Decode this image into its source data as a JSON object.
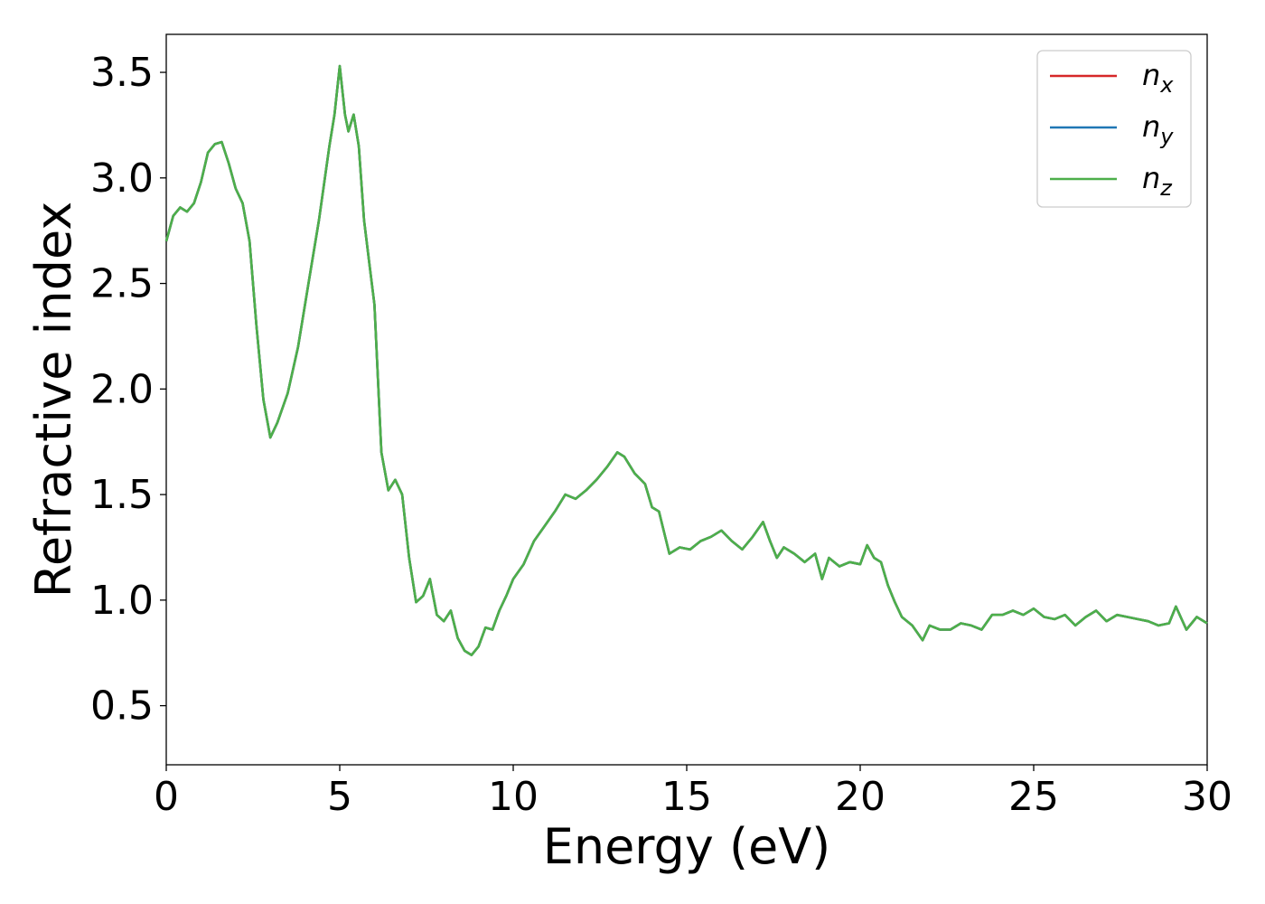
{
  "chart_data": {
    "type": "line",
    "xlabel": "Energy (eV)",
    "ylabel": "Refractive index",
    "xlim": [
      0,
      30
    ],
    "ylim": [
      0.22,
      3.68
    ],
    "xticks": [
      0,
      5,
      10,
      15,
      20,
      25,
      30
    ],
    "xtick_labels": [
      "0",
      "5",
      "10",
      "15",
      "20",
      "25",
      "30"
    ],
    "yticks": [
      0.5,
      1.0,
      1.5,
      2.0,
      2.5,
      3.0,
      3.5
    ],
    "ytick_labels": [
      "0.5",
      "1.0",
      "1.5",
      "2.0",
      "2.5",
      "3.0",
      "3.5"
    ],
    "grid": false,
    "legend_position": "top-right",
    "series": [
      {
        "name": "n",
        "subscript": "x",
        "color": "#d62728"
      },
      {
        "name": "n",
        "subscript": "y",
        "color": "#1f77b4"
      },
      {
        "name": "n",
        "subscript": "z",
        "color": "#4daf4a"
      }
    ],
    "shared_values": {
      "x": [
        0,
        0.2,
        0.4,
        0.6,
        0.8,
        1.0,
        1.2,
        1.4,
        1.6,
        1.8,
        2.0,
        2.2,
        2.4,
        2.6,
        2.8,
        3.0,
        3.2,
        3.5,
        3.8,
        4.1,
        4.4,
        4.7,
        4.85,
        5.0,
        5.15,
        5.25,
        5.4,
        5.55,
        5.7,
        5.85,
        6.0,
        6.2,
        6.4,
        6.6,
        6.8,
        7.0,
        7.2,
        7.4,
        7.6,
        7.8,
        8.0,
        8.2,
        8.4,
        8.6,
        8.8,
        9.0,
        9.2,
        9.4,
        9.6,
        9.8,
        10.0,
        10.3,
        10.6,
        10.9,
        11.2,
        11.5,
        11.8,
        12.1,
        12.4,
        12.7,
        13.0,
        13.2,
        13.5,
        13.8,
        14.0,
        14.2,
        14.5,
        14.8,
        15.1,
        15.4,
        15.7,
        16.0,
        16.3,
        16.6,
        16.9,
        17.2,
        17.4,
        17.6,
        17.8,
        18.1,
        18.4,
        18.7,
        18.9,
        19.1,
        19.4,
        19.7,
        20.0,
        20.2,
        20.4,
        20.6,
        20.8,
        21.0,
        21.2,
        21.5,
        21.8,
        22.0,
        22.3,
        22.6,
        22.9,
        23.2,
        23.5,
        23.8,
        24.1,
        24.4,
        24.7,
        25.0,
        25.3,
        25.6,
        25.9,
        26.2,
        26.5,
        26.8,
        27.1,
        27.4,
        27.7,
        28.0,
        28.3,
        28.6,
        28.9,
        29.1,
        29.4,
        29.7,
        30.0
      ],
      "y": [
        2.7,
        2.82,
        2.86,
        2.84,
        2.88,
        2.98,
        3.12,
        3.16,
        3.17,
        3.07,
        2.95,
        2.88,
        2.7,
        2.3,
        1.95,
        1.77,
        1.84,
        1.98,
        2.2,
        2.5,
        2.8,
        3.15,
        3.3,
        3.53,
        3.3,
        3.22,
        3.3,
        3.15,
        2.8,
        2.6,
        2.4,
        1.7,
        1.52,
        1.57,
        1.5,
        1.2,
        0.99,
        1.02,
        1.1,
        0.93,
        0.9,
        0.95,
        0.82,
        0.76,
        0.74,
        0.78,
        0.87,
        0.86,
        0.95,
        1.02,
        1.1,
        1.17,
        1.28,
        1.35,
        1.42,
        1.5,
        1.48,
        1.52,
        1.57,
        1.63,
        1.7,
        1.68,
        1.6,
        1.55,
        1.44,
        1.42,
        1.22,
        1.25,
        1.24,
        1.28,
        1.3,
        1.33,
        1.28,
        1.24,
        1.3,
        1.37,
        1.28,
        1.2,
        1.25,
        1.22,
        1.18,
        1.22,
        1.1,
        1.2,
        1.16,
        1.18,
        1.17,
        1.26,
        1.2,
        1.18,
        1.07,
        0.99,
        0.92,
        0.88,
        0.81,
        0.88,
        0.86,
        0.86,
        0.89,
        0.88,
        0.86,
        0.93,
        0.93,
        0.95,
        0.93,
        0.96,
        0.92,
        0.91,
        0.93,
        0.88,
        0.92,
        0.95,
        0.9,
        0.93,
        0.92,
        0.91,
        0.9,
        0.88,
        0.89,
        0.97,
        0.86,
        0.92,
        0.89
      ]
    }
  }
}
